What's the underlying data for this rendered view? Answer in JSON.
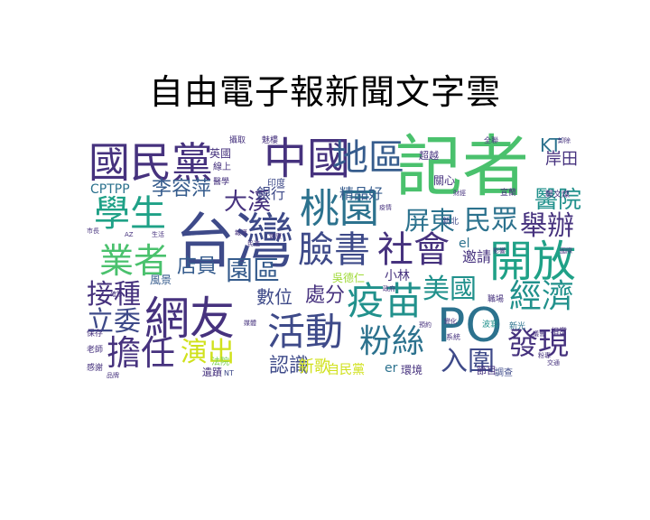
{
  "title": "自由電子報新聞文字雲",
  "palette": {
    "dark_purple": "#46327e",
    "indigo": "#3e4a89",
    "blue": "#365c8d",
    "steel": "#2c728e",
    "teal": "#21918c",
    "sea_green": "#1fa187",
    "green": "#4ac16d",
    "light_green": "#7ad151",
    "yellow_green": "#a0da39",
    "lime": "#d0e11c"
  },
  "words": [
    {
      "text": "記者",
      "weight": 1.0,
      "color": "#4ac16d"
    },
    {
      "text": "台灣",
      "weight": 0.95,
      "color": "#3e4a89"
    },
    {
      "text": "中國",
      "weight": 0.62,
      "color": "#46327e"
    },
    {
      "text": "國民黨",
      "weight": 0.6,
      "color": "#46327e"
    },
    {
      "text": "開放",
      "weight": 0.62,
      "color": "#1fa187"
    },
    {
      "text": "PO",
      "weight": 0.6,
      "color": "#2c728e"
    },
    {
      "text": "網友",
      "weight": 0.6,
      "color": "#46327e"
    },
    {
      "text": "桃園",
      "weight": 0.55,
      "color": "#2c728e"
    },
    {
      "text": "臉書",
      "weight": 0.52,
      "color": "#3e4a89"
    },
    {
      "text": "社會",
      "weight": 0.52,
      "color": "#46327e"
    },
    {
      "text": "活動",
      "weight": 0.55,
      "color": "#3e4a89"
    },
    {
      "text": "疫苗",
      "weight": 0.55,
      "color": "#21918c"
    },
    {
      "text": "地區",
      "weight": 0.5,
      "color": "#365c8d"
    },
    {
      "text": "學生",
      "weight": 0.48,
      "color": "#1fa187"
    },
    {
      "text": "業者",
      "weight": 0.46,
      "color": "#4ac16d"
    },
    {
      "text": "擔任",
      "weight": 0.46,
      "color": "#46327e"
    },
    {
      "text": "粉絲",
      "weight": 0.42,
      "color": "#2c728e"
    },
    {
      "text": "經濟",
      "weight": 0.42,
      "color": "#21918c"
    },
    {
      "text": "發現",
      "weight": 0.4,
      "color": "#46327e"
    },
    {
      "text": "入圍",
      "weight": 0.38,
      "color": "#3e4a89"
    },
    {
      "text": "民眾",
      "weight": 0.38,
      "color": "#2c728e"
    },
    {
      "text": "舉辦",
      "weight": 0.36,
      "color": "#46327e"
    },
    {
      "text": "美國",
      "weight": 0.36,
      "color": "#21918c"
    },
    {
      "text": "園區",
      "weight": 0.36,
      "color": "#365c8d"
    },
    {
      "text": "接種",
      "weight": 0.34,
      "color": "#46327e"
    },
    {
      "text": "立委",
      "weight": 0.34,
      "color": "#3e4a89"
    },
    {
      "text": "演出",
      "weight": 0.34,
      "color": "#d0e11c"
    },
    {
      "text": "屏東",
      "weight": 0.32,
      "color": "#2c728e"
    },
    {
      "text": "醫院",
      "weight": 0.3,
      "color": "#21918c"
    },
    {
      "text": "大溪",
      "weight": 0.28,
      "color": "#46327e"
    },
    {
      "text": "李容萍",
      "weight": 0.26,
      "color": "#365c8d"
    },
    {
      "text": "店員",
      "weight": 0.26,
      "color": "#365c8d"
    },
    {
      "text": "處分",
      "weight": 0.26,
      "color": "#46327e"
    },
    {
      "text": "認識",
      "weight": 0.24,
      "color": "#3e4a89"
    },
    {
      "text": "數位",
      "weight": 0.22,
      "color": "#3e4a89"
    },
    {
      "text": "KT",
      "weight": 0.22,
      "color": "#2c728e"
    },
    {
      "text": "岸田",
      "weight": 0.2,
      "color": "#46327e"
    },
    {
      "text": "銀行",
      "weight": 0.18,
      "color": "#3e4a89"
    },
    {
      "text": "精品好",
      "weight": 0.18,
      "color": "#365c8d"
    },
    {
      "text": "新歌",
      "weight": 0.18,
      "color": "#d0e11c"
    },
    {
      "text": "邀請",
      "weight": 0.16,
      "color": "#46327e"
    },
    {
      "text": "CPTPP",
      "weight": 0.16,
      "color": "#2c728e"
    },
    {
      "text": "自民黨",
      "weight": 0.14,
      "color": "#d0e11c"
    },
    {
      "text": "小林",
      "weight": 0.14,
      "color": "#46327e"
    },
    {
      "text": "吳德仁",
      "weight": 0.14,
      "color": "#a0da39"
    },
    {
      "text": "環境",
      "weight": 0.14,
      "color": "#46327e"
    },
    {
      "text": "超越",
      "weight": 0.13,
      "color": "#46327e"
    },
    {
      "text": "英國",
      "weight": 0.13,
      "color": "#46327e"
    },
    {
      "text": "關心",
      "weight": 0.12,
      "color": "#46327e"
    },
    {
      "text": "風景",
      "weight": 0.12,
      "color": "#365c8d"
    },
    {
      "text": "遺蹟",
      "weight": 0.11,
      "color": "#46327e"
    },
    {
      "text": "節目",
      "weight": 0.11,
      "color": "#46327e"
    },
    {
      "text": "調查",
      "weight": 0.1,
      "color": "#3e4a89"
    },
    {
      "text": "er",
      "weight": 0.12,
      "color": "#2c728e"
    },
    {
      "text": "el",
      "weight": 0.12,
      "color": "#2c728e"
    },
    {
      "text": "線上",
      "weight": 0.1,
      "color": "#46327e"
    },
    {
      "text": "印度",
      "weight": 0.1,
      "color": "#3e4a89"
    },
    {
      "text": "法院",
      "weight": 0.1,
      "color": "#7ad151"
    },
    {
      "text": "攝取",
      "weight": 0.09,
      "color": "#46327e"
    },
    {
      "text": "魅樓",
      "weight": 0.09,
      "color": "#46327e"
    },
    {
      "text": "醫學",
      "weight": 0.09,
      "color": "#46327e"
    },
    {
      "text": "鄭文燦",
      "weight": 0.09,
      "color": "#46327e"
    },
    {
      "text": "宣蘭",
      "weight": 0.09,
      "color": "#46327e"
    },
    {
      "text": "新北",
      "weight": 0.09,
      "color": "#3e4a89"
    },
    {
      "text": "感謝",
      "weight": 0.09,
      "color": "#46327e"
    },
    {
      "text": "老師",
      "weight": 0.09,
      "color": "#46327e"
    },
    {
      "text": "保存",
      "weight": 0.09,
      "color": "#46327e"
    },
    {
      "text": "相當",
      "weight": 0.09,
      "color": "#46327e"
    },
    {
      "text": "新光",
      "weight": 0.09,
      "color": "#2c728e"
    },
    {
      "text": "波寫",
      "weight": 0.09,
      "color": "#21918c"
    },
    {
      "text": "職場",
      "weight": 0.09,
      "color": "#46327e"
    },
    {
      "text": "系統",
      "weight": 0.08,
      "color": "#46327e"
    },
    {
      "text": "全聯",
      "weight": 0.08,
      "color": "#46327e"
    },
    {
      "text": "NT",
      "weight": 0.08,
      "color": "#3e4a89"
    },
    {
      "text": "AZ",
      "weight": 0.07,
      "color": "#46327e"
    },
    {
      "text": "變化",
      "weight": 0.07,
      "color": "#46327e"
    },
    {
      "text": "預約",
      "weight": 0.07,
      "color": "#46327e"
    },
    {
      "text": "財經",
      "weight": 0.07,
      "color": "#46327e"
    },
    {
      "text": "卸除",
      "weight": 0.07,
      "color": "#46327e"
    },
    {
      "text": "影響",
      "weight": 0.07,
      "color": "#46327e"
    },
    {
      "text": "報導",
      "weight": 0.07,
      "color": "#46327e"
    },
    {
      "text": "疫情",
      "weight": 0.07,
      "color": "#46327e"
    },
    {
      "text": "政府",
      "weight": 0.07,
      "color": "#46327e"
    },
    {
      "text": "民進",
      "weight": 0.07,
      "color": "#46327e"
    },
    {
      "text": "市長",
      "weight": 0.07,
      "color": "#46327e"
    },
    {
      "text": "生活",
      "weight": 0.07,
      "color": "#46327e"
    },
    {
      "text": "健康",
      "weight": 0.07,
      "color": "#46327e"
    },
    {
      "text": "國際",
      "weight": 0.07,
      "color": "#46327e"
    },
    {
      "text": "確診",
      "weight": 0.07,
      "color": "#46327e"
    },
    {
      "text": "媒體",
      "weight": 0.07,
      "color": "#46327e"
    },
    {
      "text": "議會",
      "weight": 0.07,
      "color": "#46327e"
    },
    {
      "text": "交通",
      "weight": 0.07,
      "color": "#46327e"
    },
    {
      "text": "品牌",
      "weight": 0.07,
      "color": "#46327e"
    },
    {
      "text": "粉專",
      "weight": 0.07,
      "color": "#46327e"
    }
  ]
}
